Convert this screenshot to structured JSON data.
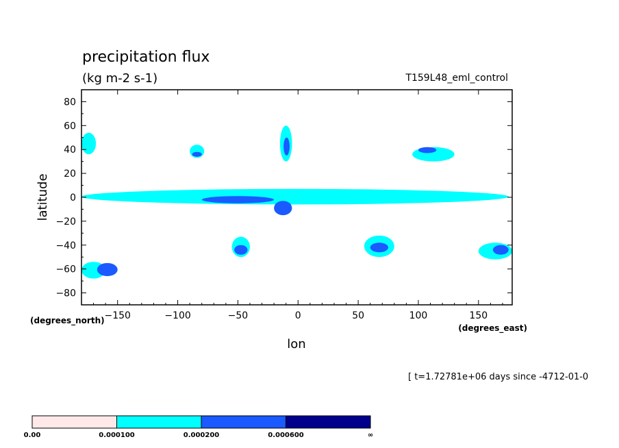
{
  "chart_data": {
    "type": "heatmap",
    "title": "precipitation flux",
    "units": "(kg m-2 s-1)",
    "run_label": "T159L48_eml_control",
    "xlabel": "lon",
    "ylabel": "latitude",
    "x_units": "(degrees_east)",
    "y_units": "(degrees_north)",
    "time_label": "[ t=1.72781e+06 days since -4712-01-0",
    "xlim": [
      -180,
      178
    ],
    "ylim": [
      -90,
      90
    ],
    "x_ticks": [
      -150,
      -100,
      -50,
      0,
      50,
      100,
      150
    ],
    "y_ticks": [
      80,
      60,
      40,
      20,
      0,
      -20,
      -40,
      -60,
      -80
    ],
    "colorbar": {
      "levels": [
        "0.00",
        "0.000100",
        "0.000200",
        "0.000600",
        "∞"
      ],
      "colors": [
        "#ffe8e8",
        "#00ffff",
        "#1a5aff",
        "#00008c"
      ]
    },
    "regions": [
      {
        "level": 1,
        "lon": [
          -180,
          175
        ],
        "lat": [
          -6,
          7
        ]
      },
      {
        "level": 2,
        "lon": [
          -80,
          -20
        ],
        "lat": [
          -5,
          1
        ]
      },
      {
        "level": 2,
        "lon": [
          -20,
          -5
        ],
        "lat": [
          -15,
          -3
        ]
      },
      {
        "level": 1,
        "lon": [
          -180,
          -168
        ],
        "lat": [
          36,
          54
        ]
      },
      {
        "level": 1,
        "lon": [
          -180,
          -160
        ],
        "lat": [
          -68,
          -54
        ]
      },
      {
        "level": 2,
        "lon": [
          -167,
          -150
        ],
        "lat": [
          -66,
          -55
        ]
      },
      {
        "level": 1,
        "lon": [
          -15,
          -5
        ],
        "lat": [
          30,
          60
        ]
      },
      {
        "level": 2,
        "lon": [
          -12,
          -7
        ],
        "lat": [
          35,
          50
        ]
      },
      {
        "level": 1,
        "lon": [
          95,
          130
        ],
        "lat": [
          30,
          42
        ]
      },
      {
        "level": 2,
        "lon": [
          100,
          115
        ],
        "lat": [
          37,
          42
        ]
      },
      {
        "level": 1,
        "lon": [
          55,
          80
        ],
        "lat": [
          -50,
          -32
        ]
      },
      {
        "level": 2,
        "lon": [
          60,
          75
        ],
        "lat": [
          -46,
          -38
        ]
      },
      {
        "level": 1,
        "lon": [
          150,
          178
        ],
        "lat": [
          -52,
          -38
        ]
      },
      {
        "level": 2,
        "lon": [
          162,
          175
        ],
        "lat": [
          -48,
          -40
        ]
      },
      {
        "level": 1,
        "lon": [
          -55,
          -40
        ],
        "lat": [
          -50,
          -33
        ]
      },
      {
        "level": 2,
        "lon": [
          -53,
          -42
        ],
        "lat": [
          -48,
          -40
        ]
      },
      {
        "level": 1,
        "lon": [
          -90,
          -78
        ],
        "lat": [
          33,
          44
        ]
      },
      {
        "level": 2,
        "lon": [
          -88,
          -80
        ],
        "lat": [
          34,
          38
        ]
      }
    ]
  }
}
